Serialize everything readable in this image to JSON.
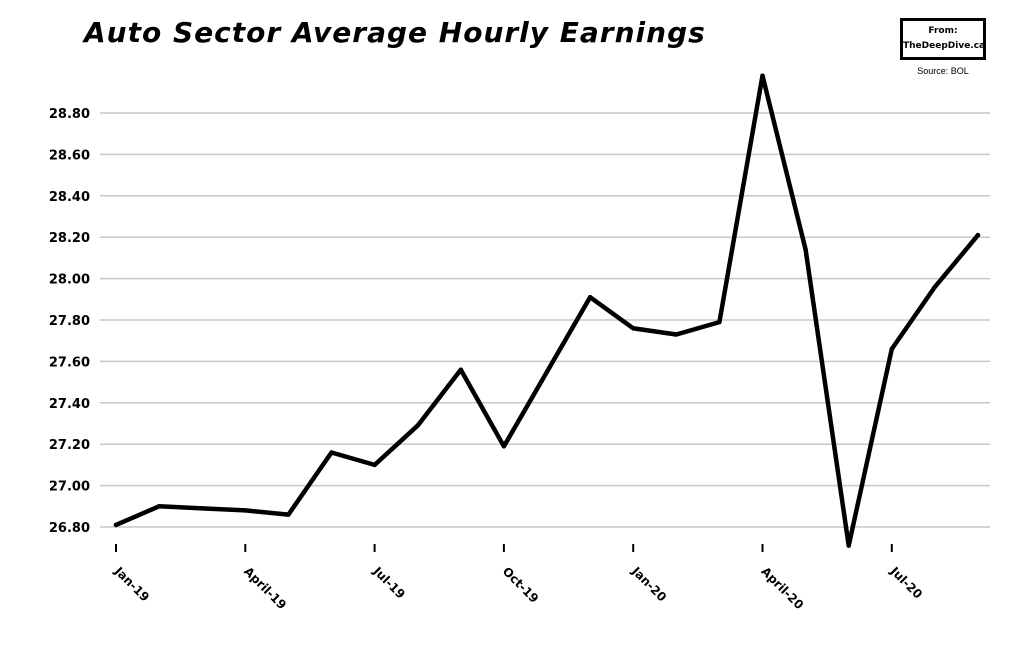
{
  "header": {
    "title": "Auto Sector Average Hourly Earnings",
    "badge_line1": "From:",
    "badge_line2": "TheDeepDive.ca",
    "source": "Source: BOL"
  },
  "chart_data": {
    "type": "line",
    "title": "Auto Sector Average Hourly Earnings",
    "xlabel": "",
    "ylabel": "",
    "x": [
      "Jan-19",
      "Feb-19",
      "Mar-19",
      "Apr-19",
      "May-19",
      "Jun-19",
      "Jul-19",
      "Aug-19",
      "Sep-19",
      "Oct-19",
      "Nov-19",
      "Dec-19",
      "Jan-20",
      "Feb-20",
      "Mar-20",
      "Apr-20",
      "May-20",
      "Jun-20",
      "Jul-20",
      "Aug-20",
      "Sep-20"
    ],
    "values": [
      26.81,
      26.9,
      26.89,
      26.88,
      26.86,
      27.16,
      27.1,
      27.29,
      27.56,
      27.19,
      27.55,
      27.91,
      27.76,
      27.73,
      27.79,
      28.98,
      28.14,
      26.71,
      27.66,
      27.96,
      28.21
    ],
    "yticks": [
      "26.80",
      "27.00",
      "27.20",
      "27.40",
      "27.60",
      "27.80",
      "28.00",
      "28.20",
      "28.40",
      "28.60",
      "28.80"
    ],
    "ytick_values": [
      26.8,
      27.0,
      27.2,
      27.4,
      27.6,
      27.8,
      28.0,
      28.2,
      28.4,
      28.6,
      28.8
    ],
    "xticks": [
      "Jan-19",
      "April-19",
      "Jul-19",
      "Oct-19",
      "Jan-20",
      "April-20",
      "Jul-20"
    ],
    "xtick_index": [
      0,
      3,
      6,
      9,
      12,
      15,
      18
    ],
    "ylim": [
      26.8,
      28.8
    ],
    "grid": true,
    "legend": "none",
    "line_color": "#000000",
    "grid_color": "#c8c8c8"
  }
}
